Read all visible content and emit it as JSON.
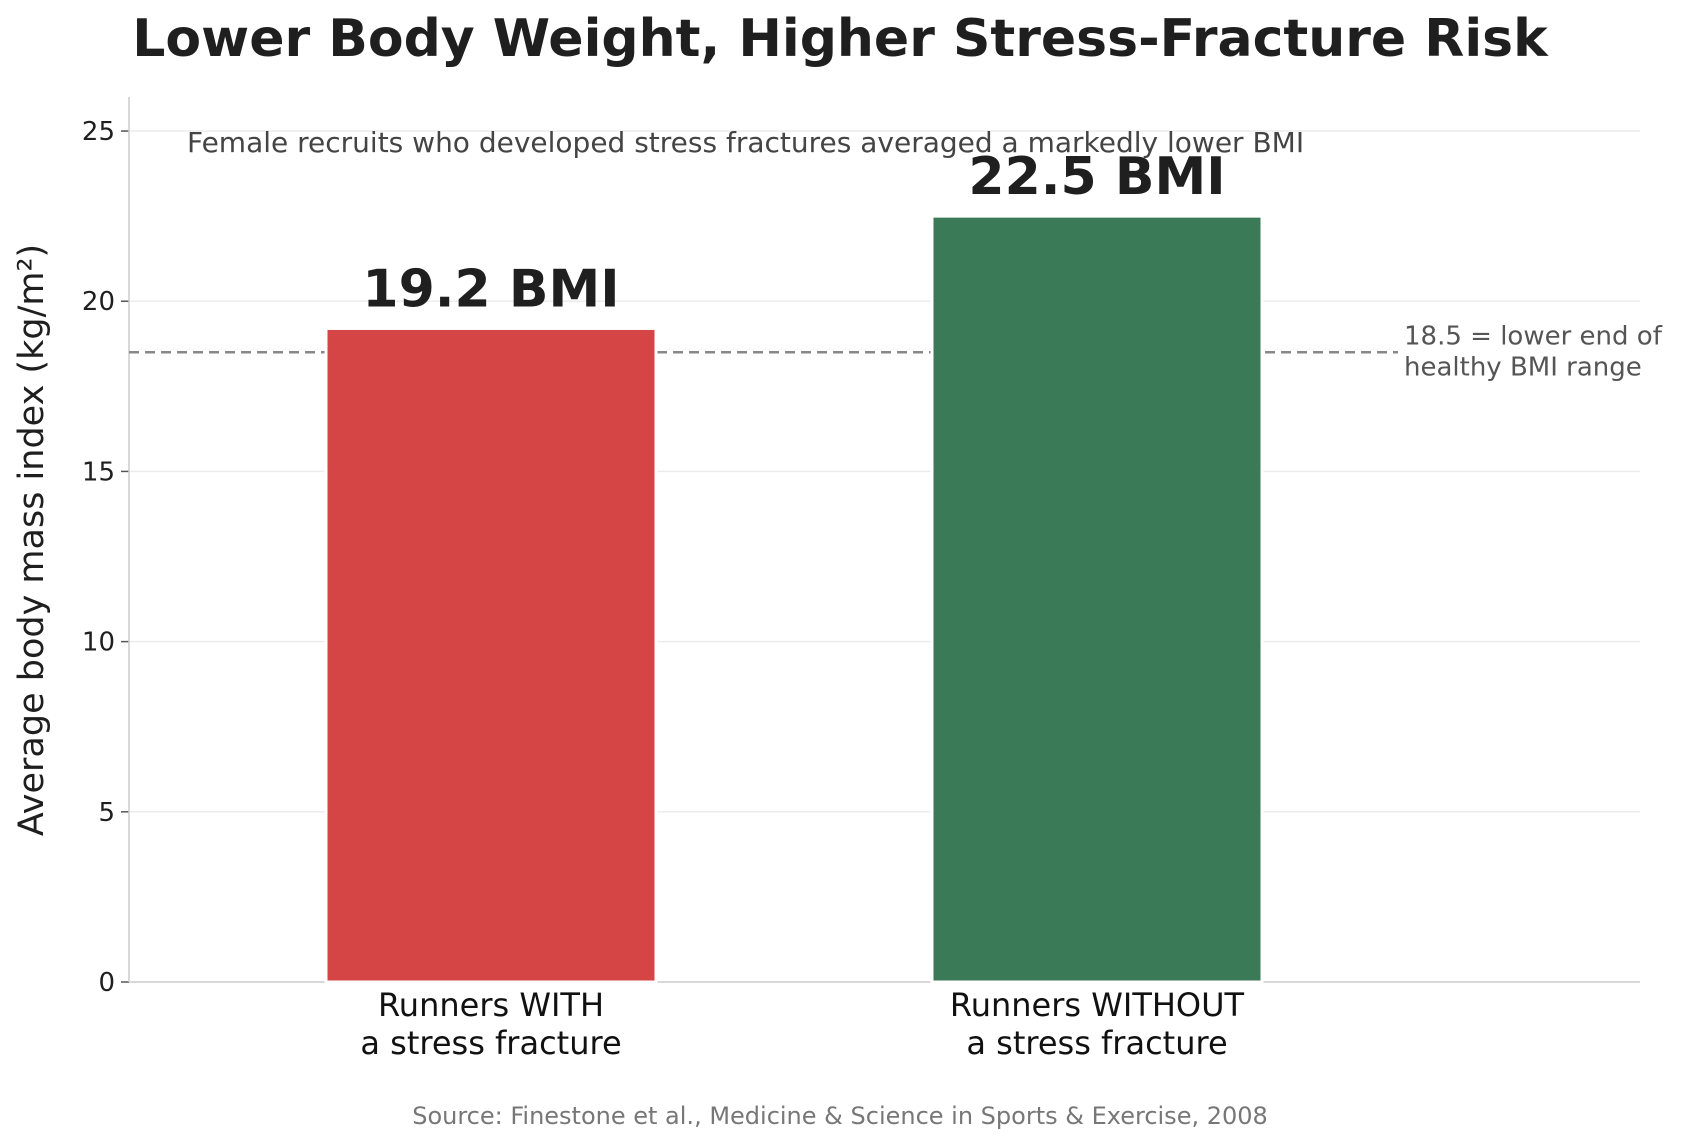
{
  "chart_data": {
    "type": "bar",
    "title": "Lower Body Weight, Higher Stress-Fracture Risk",
    "subtitle": "Female recruits who developed stress fractures averaged a markedly lower BMI",
    "xlabel": "",
    "ylabel": "Average body mass index (kg/m²)",
    "ylim": [
      0,
      26
    ],
    "yticks": [
      0,
      5,
      10,
      15,
      20,
      25
    ],
    "categories": [
      [
        "Runners WITH",
        "a stress fracture"
      ],
      [
        "Runners WITHOUT",
        "a stress fracture"
      ]
    ],
    "values": [
      19.2,
      22.5
    ],
    "data_labels": [
      "19.2 BMI",
      "22.5 BMI"
    ],
    "colors": [
      "#d64545",
      "#3b7a57"
    ],
    "reference_line": {
      "value": 18.5,
      "style": "dashed",
      "color": "#888888",
      "label": [
        "18.5 = lower end of",
        "healthy BMI range"
      ]
    },
    "grid": "horizontal",
    "legend": "none",
    "source": "Source: Finestone et al., Medicine & Science in Sports & Exercise, 2008"
  }
}
